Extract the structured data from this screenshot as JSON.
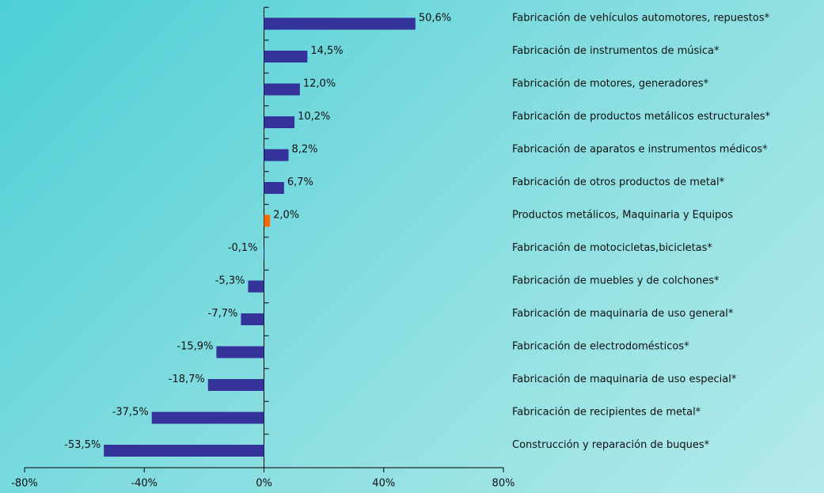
{
  "chart_data": {
    "type": "barh",
    "categories": [
      "Fabricación de vehículos automotores, repuestos*",
      "Fabricación de instrumentos de música*",
      "Fabricación de motores, generadores*",
      "Fabricación de productos metálicos estructurales*",
      "Fabricación de aparatos e instrumentos médicos*",
      "Fabricación de otros productos de metal*",
      "Productos metálicos, Maquinaria y Equipos",
      "Fabricación de motocicletas,bicicletas*",
      "Fabricación de muebles y de colchones*",
      "Fabricación de maquinaria de uso general*",
      "Fabricación de electrodomésticos*",
      "Fabricación de maquinaria de uso especial*",
      "Fabricación de recipientes de metal*",
      "Construcción y reparación de buques*"
    ],
    "values": [
      50.6,
      14.5,
      12.0,
      10.2,
      8.2,
      6.7,
      2.0,
      -0.1,
      -5.3,
      -7.7,
      -15.9,
      -18.7,
      -37.5,
      -53.5
    ],
    "value_labels": [
      "50,6%",
      "14,5%",
      "12,0%",
      "10,2%",
      "8,2%",
      "6,7%",
      "2,0%",
      "-0,1%",
      "-5,3%",
      "-7,7%",
      "-15,9%",
      "-18,7%",
      "-37,5%",
      "-53,5%"
    ],
    "colors": [
      "#333399",
      "#333399",
      "#333399",
      "#333399",
      "#333399",
      "#333399",
      "#ff6600",
      "#333399",
      "#333399",
      "#333399",
      "#333399",
      "#333399",
      "#333399",
      "#333399"
    ],
    "xlim": [
      -80,
      80
    ],
    "xticks": [
      {
        "value": -80,
        "label": "-80%"
      },
      {
        "value": -40,
        "label": "-40%"
      },
      {
        "value": 0,
        "label": "0%"
      },
      {
        "value": 40,
        "label": "40%"
      },
      {
        "value": 80,
        "label": "80%"
      }
    ]
  }
}
